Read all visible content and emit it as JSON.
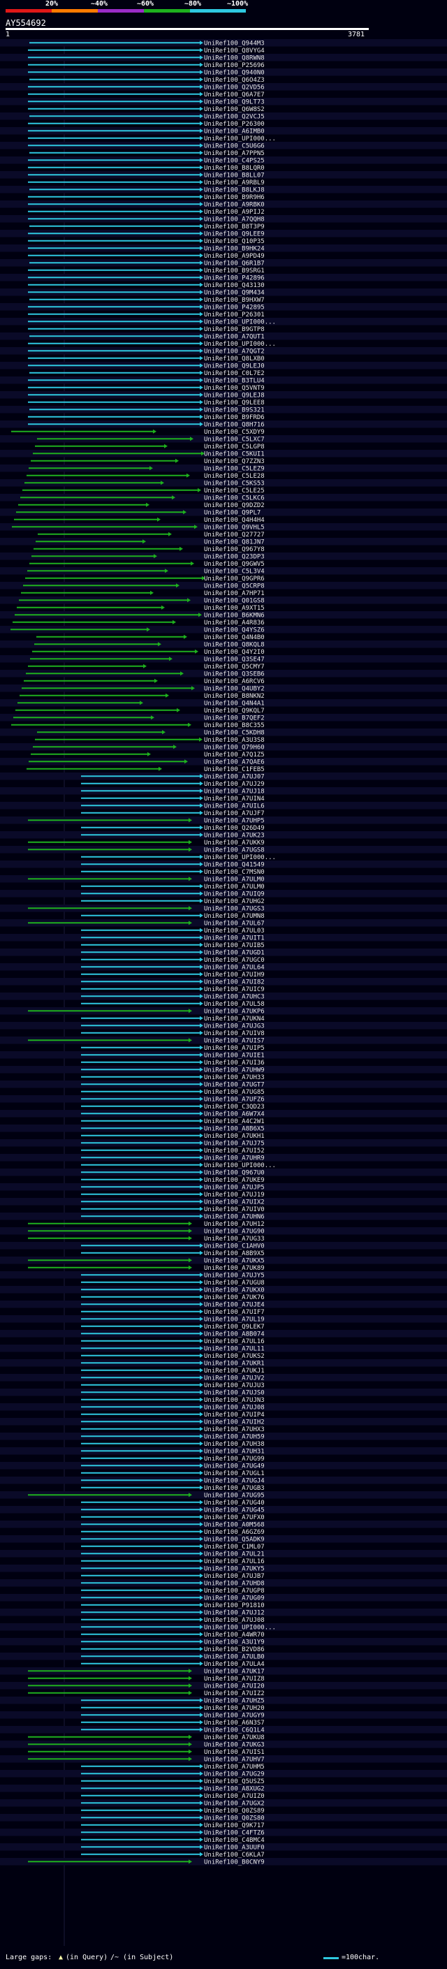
{
  "scale": {
    "labels": [
      "20%",
      "~40%",
      "~60%",
      "~80%",
      "~100%"
    ],
    "colors": [
      "#e01818",
      "#ff7a00",
      "#9a2cc8",
      "#1eb01e",
      "#2ec8e0"
    ]
  },
  "query": {
    "name": "AY554692",
    "start": "1",
    "end": "3781"
  },
  "colors": {
    "high_identity": "#2ec8e0",
    "mid_identity": "#1eb01e",
    "gap_mark": "#ffffaa",
    "row_band": "#0a0a28"
  },
  "hits": [
    "UniRef100_Q944M3",
    "UniRef100_Q8VYG4",
    "UniRef100_Q8RWN8",
    "UniRef100_P25696",
    "UniRef100_Q940N0",
    "UniRef100_Q6O4Z3",
    "UniRef100_Q2VD56",
    "UniRef100_Q6A7E7",
    "UniRef100_Q9LT73",
    "UniRef100_Q6W8S2",
    "UniRef100_Q2VCJ5",
    "UniRef100_P26300",
    "UniRef100_A6IMB0",
    "UniRef100_UPI000...",
    "UniRef100_C5U6G6",
    "UniRef100_A7PPN5",
    "UniRef100_C4PS25",
    "UniRef100_B8LQR0",
    "UniRef100_B8LL07",
    "UniRef100_A9RBL9",
    "UniRef100_B8LKJ8",
    "UniRef100_B9R9H6",
    "UniRef100_A9RBK0",
    "UniRef100_A9PIJ2",
    "UniRef100_A7QQH8",
    "UniRef100_B8T3P9",
    "UniRef100_Q9LEE9",
    "UniRef100_Q10P35",
    "UniRef100_B9HK24",
    "UniRef100_A9PD49",
    "UniRef100_Q6R1B7",
    "UniRef100_B9SRG1",
    "UniRef100_P42896",
    "UniRef100_Q43130",
    "UniRef100_Q9M434",
    "UniRef100_B9HXW7",
    "UniRef100_P42895",
    "UniRef100_P26301",
    "UniRef100_UPI000...",
    "UniRef100_B9GTP8",
    "UniRef100_A7QUT1",
    "UniRef100_UPI000...",
    "UniRef100_A7QGT2",
    "UniRef100_Q8LXB0",
    "UniRef100_Q9LEJ0",
    "UniRef100_C0L7E2",
    "UniRef100_B3TLU4",
    "UniRef100_Q5VNT9",
    "UniRef100_Q9LEJ8",
    "UniRef100_Q9LEE8",
    "UniRef100_B9S321",
    "UniRef100_B9FRD6",
    "UniRef100_Q8H716",
    "UniRef100_C5XDY9",
    "UniRef100_C5LXC7",
    "UniRef100_C5LGP8",
    "UniRef100_C5KUI1",
    "UniRef100_Q7ZZN3",
    "UniRef100_C5LEZ9",
    "UniRef100_C5LE28",
    "UniRef100_C5KS53",
    "UniRef100_C5LE25",
    "UniRef100_C5LKC6",
    "UniRef100_Q9DZD2",
    "UniRef100_Q9PL7",
    "UniRef100_Q4H4H4",
    "UniRef100_Q9VHL5",
    "UniRef100_Q27727",
    "UniRef100_Q81JN7",
    "UniRef100_Q967Y8",
    "UniRef100_Q23DP3",
    "UniRef100_Q9GWV5",
    "UniRef100_C5L3V4",
    "UniRef100_Q9GPR6",
    "UniRef100_Q5CRP8",
    "UniRef100_A7HP71",
    "UniRef100_Q01GS8",
    "UniRef100_A9XT15",
    "UniRef100_B6KMN6",
    "UniRef100_A4R836",
    "UniRef100_Q4YSZ6",
    "UniRef100_Q4N4B0",
    "UniRef100_Q8KQL8",
    "UniRef100_Q4Y2I0",
    "UniRef100_Q3SE47",
    "UniRef100_Q5CMY7",
    "UniRef100_Q3SEB6",
    "UniRef100_A6RCV6",
    "UniRef100_Q4UBY2",
    "UniRef100_B8NKN2",
    "UniRef100_Q4N4A1",
    "UniRef100_Q9KQL7",
    "UniRef100_B7QEF2",
    "UniRef100_B8C355",
    "UniRef100_C5KDH8",
    "UniRef100_A3U3S8",
    "UniRef100_Q79H60",
    "UniRef100_A7Q1Z5",
    "UniRef100_A7QAE6",
    "UniRef100_C1FEB5",
    "UniRef100_A7UJ07",
    "UniRef100_A7UJ29",
    "UniRef100_A7UJ18",
    "UniRef100_A7UIN4",
    "UniRef100_A7UIL6",
    "UniRef100_A7UJF7",
    "UniRef100_A7UHP5",
    "UniRef100_Q26D49",
    "UniRef100_A7UK23",
    "UniRef100_A7UKK9",
    "UniRef100_A7UGS8",
    "UniRef100_UPI000...",
    "UniRef100_Q41549",
    "UniRef100_C7MSN0",
    "UniRef100_A7ULM0",
    "UniRef100_A7ULM0",
    "UniRef100_A7UIQ9",
    "UniRef100_A7UHG2",
    "UniRef100_A7UGS3",
    "UniRef100_A7UMN8",
    "UniRef100_A7UL67",
    "UniRef100_A7UL03",
    "UniRef100_A7UIT1",
    "UniRef100_A7UIB5",
    "UniRef100_A7UGD1",
    "UniRef100_A7UGC0",
    "UniRef100_A7UL64",
    "UniRef100_A7UIH9",
    "UniRef100_A7UI82",
    "UniRef100_A7UIC9",
    "UniRef100_A7UHC3",
    "UniRef100_A7UL58",
    "UniRef100_A7UKP6",
    "UniRef100_A7UKN4",
    "UniRef100_A7UJG3",
    "UniRef100_A7UIV8",
    "UniRef100_A7UIS7",
    "UniRef100_A7UIP5",
    "UniRef100_A7UIE1",
    "UniRef100_A7UI36",
    "UniRef100_A7UHW9",
    "UniRef100_A7UH33",
    "UniRef100_A7UGT7",
    "UniRef100_A7UG85",
    "UniRef100_A7UFZ6",
    "UniRef100_C3QD23",
    "UniRef100_A6W7X4",
    "UniRef100_A4C2W1",
    "UniRef100_A8B6X5",
    "UniRef100_A7UKH1",
    "UniRef100_A7UJ75",
    "UniRef100_A7UI52",
    "UniRef100_A7UHR9",
    "UniRef100_UPI000...",
    "UniRef100_Q967U0",
    "UniRef100_A7UKE9",
    "UniRef100_A7UJP5",
    "UniRef100_A7UJ19",
    "UniRef100_A7UIX2",
    "UniRef100_A7UIV0",
    "UniRef100_A7UHN6",
    "UniRef100_A7UH12",
    "UniRef100_A7UG90",
    "UniRef100_A7UG33",
    "UniRef100_C1AHV0",
    "UniRef100_A8B9X5",
    "UniRef100_A7UKX5",
    "UniRef100_A7UK89",
    "UniRef100_A7UJY5",
    "UniRef100_A7UGU8",
    "UniRef100_A7UKX0",
    "UniRef100_A7UK76",
    "UniRef100_A7UJE4",
    "UniRef100_A7UIF7",
    "UniRef100_A7UL19",
    "UniRef100_Q9LEK7",
    "UniRef100_A8B074",
    "UniRef100_A7UL16",
    "UniRef100_A7UL11",
    "UniRef100_A7UKS2",
    "UniRef100_A7UKR1",
    "UniRef100_A7UKJ1",
    "UniRef100_A7UJV2",
    "UniRef100_A7UJU3",
    "UniRef100_A7UJS0",
    "UniRef100_A7UJN3",
    "UniRef100_A7UJ08",
    "UniRef100_A7UIP4",
    "UniRef100_A7UIH2",
    "UniRef100_A7UHX3",
    "UniRef100_A7UH59",
    "UniRef100_A7UH38",
    "UniRef100_A7UH31",
    "UniRef100_A7UG99",
    "UniRef100_A7UG49",
    "UniRef100_A7UGL1",
    "UniRef100_A7UGJ4",
    "UniRef100_A7UGB3",
    "UniRef100_A7UG95",
    "UniRef100_A7UG40",
    "UniRef100_A7UG45",
    "UniRef100_A7UFX0",
    "UniRef100_A0M568",
    "UniRef100_A6GZ69",
    "UniRef100_Q5ADK9",
    "UniRef100_C1ML07",
    "UniRef100_A7UL21",
    "UniRef100_A7UL16",
    "UniRef100_A7UKY5",
    "UniRef100_A7UJB7",
    "UniRef100_A7UHD8",
    "UniRef100_A7UGP8",
    "UniRef100_A7UG09",
    "UniRef100_P91810",
    "UniRef100_A7UJ12",
    "UniRef100_A7UJ08",
    "UniRef100_UPI000...",
    "UniRef100_A4WR70",
    "UniRef100_A3U1Y9",
    "UniRef100_B2VD86",
    "UniRef100_A7ULB0",
    "UniRef100_A7ULA4",
    "UniRef100_A7UK17",
    "UniRef100_A7UIZ8",
    "UniRef100_A7UI20",
    "UniRef100_A7UIZ2",
    "UniRef100_A7UHZ5",
    "UniRef100_A7UH20",
    "UniRef100_A7UGY9",
    "UniRef100_A6N3S7",
    "UniRef100_C6Q1L4",
    "UniRef100_A7UKU8",
    "UniRef100_A7UKG3",
    "UniRef100_A7UIS1",
    "UniRef100_A7UHV7",
    "UniRef100_A7UHM5",
    "UniRef100_A7UG29",
    "UniRef100_Q5USZ5",
    "UniRef100_A8XUG2",
    "UniRef100_A7UIZ0",
    "UniRef100_A7UGX2",
    "UniRef100_Q0ZS89",
    "UniRef100_Q0ZS80",
    "UniRef100_Q9K717",
    "UniRef100_C4FTZ6",
    "UniRef100_C4BMC4",
    "UniRef100_A3UUF0",
    "UniRef100_C6KLA7",
    "UniRef100_B0CNY9"
  ],
  "legend": {
    "large_gaps_label": "Large gaps:",
    "in_query_label": "(in Query)",
    "in_subject_label": "/~ (in Subject)",
    "scale_label": "=100char."
  }
}
